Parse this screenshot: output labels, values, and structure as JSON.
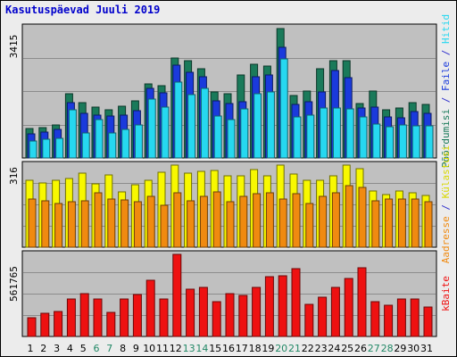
{
  "title": "Kasutuspäevad Juuli 2019",
  "colors": {
    "hits": "#1a7a5a",
    "files": "#1a3adc",
    "pages": "#26d8f0",
    "visits": "#f8f800",
    "sites": "#f08a10",
    "kbytes": "#ee1111",
    "weekday_label": "#000000",
    "weekend_label": "#228866",
    "panel_bg": "#c0c0c0"
  },
  "chart_data": [
    {
      "type": "bar",
      "panel": "top",
      "max_label": "3415",
      "ylim": [
        0,
        3415
      ],
      "grid": true,
      "categories": [
        "1",
        "2",
        "3",
        "4",
        "5",
        "6",
        "7",
        "8",
        "9",
        "10",
        "11",
        "12",
        "13",
        "14",
        "15",
        "16",
        "17",
        "18",
        "19",
        "20",
        "21",
        "22",
        "23",
        "24",
        "25",
        "26",
        "27",
        "28",
        "29",
        "30",
        "31"
      ],
      "series": [
        {
          "name": "Hitid",
          "values": [
            780,
            800,
            860,
            1690,
            1460,
            1340,
            1270,
            1350,
            1500,
            1940,
            1900,
            2630,
            2550,
            2330,
            1730,
            1680,
            2170,
            2450,
            2400,
            3390,
            1630,
            1750,
            2330,
            2540,
            2550,
            1420,
            1750,
            1260,
            1300,
            1440,
            1410
          ]
        },
        {
          "name": "Faile",
          "values": [
            620,
            670,
            740,
            1440,
            1180,
            1130,
            1100,
            1120,
            1230,
            1820,
            1710,
            2440,
            2240,
            2120,
            1500,
            1420,
            1470,
            2120,
            2180,
            2890,
            1410,
            1480,
            1730,
            2290,
            2100,
            1300,
            1340,
            1070,
            1060,
            1210,
            1170
          ]
        },
        {
          "name": "Põõrdumisi",
          "values": [
            440,
            490,
            520,
            1260,
            660,
            1000,
            650,
            750,
            870,
            1540,
            1340,
            1980,
            1660,
            1820,
            1100,
            1010,
            1280,
            1680,
            1740,
            2590,
            1080,
            1120,
            1310,
            1310,
            1290,
            1070,
            880,
            830,
            870,
            850,
            850
          ]
        }
      ]
    },
    {
      "type": "bar",
      "panel": "middle",
      "max_label": "316",
      "ylim": [
        0,
        316
      ],
      "grid": true,
      "categories": [
        "1",
        "2",
        "3",
        "4",
        "5",
        "6",
        "7",
        "8",
        "9",
        "10",
        "11",
        "12",
        "13",
        "14",
        "15",
        "16",
        "17",
        "18",
        "19",
        "20",
        "21",
        "22",
        "23",
        "24",
        "25",
        "26",
        "27",
        "28",
        "29",
        "30",
        "31"
      ],
      "series": [
        {
          "name": "Külastusi",
          "values": [
            256,
            248,
            256,
            266,
            285,
            244,
            279,
            212,
            242,
            256,
            288,
            316,
            285,
            292,
            296,
            276,
            275,
            298,
            276,
            316,
            282,
            259,
            258,
            275,
            316,
            302,
            215,
            202,
            216,
            210,
            200
          ]
        },
        {
          "name": "Aadresse",
          "values": [
            185,
            180,
            168,
            175,
            178,
            210,
            184,
            182,
            175,
            195,
            162,
            208,
            180,
            195,
            212,
            176,
            195,
            205,
            210,
            184,
            205,
            168,
            196,
            210,
            236,
            230,
            180,
            184,
            184,
            184,
            176
          ]
        }
      ]
    },
    {
      "type": "bar",
      "panel": "bottom",
      "max_label": "561765",
      "ylim": [
        0,
        561765
      ],
      "grid": true,
      "categories": [
        "1",
        "2",
        "3",
        "4",
        "5",
        "6",
        "7",
        "8",
        "9",
        "10",
        "11",
        "12",
        "13",
        "14",
        "15",
        "16",
        "17",
        "18",
        "19",
        "20",
        "21",
        "22",
        "23",
        "24",
        "25",
        "26",
        "27",
        "28",
        "29",
        "30",
        "31"
      ],
      "series": [
        {
          "name": "kBaite",
          "values": [
            126000,
            157000,
            171000,
            254000,
            296000,
            254000,
            165000,
            254000,
            286000,
            387000,
            254000,
            561765,
            325000,
            334000,
            240000,
            294000,
            283000,
            334000,
            408000,
            413000,
            462000,
            220000,
            266000,
            334000,
            398000,
            469000,
            240000,
            214000,
            254000,
            254000,
            203000
          ]
        }
      ]
    }
  ],
  "right_labels": {
    "top": [
      {
        "text": "Põõrdumisi",
        "color": "#1a7a5a"
      },
      {
        "text": " / ",
        "color": "#3030cc"
      },
      {
        "text": "Faile",
        "color": "#1a3adc"
      },
      {
        "text": " / ",
        "color": "#3030cc"
      },
      {
        "text": "Hitid",
        "color": "#26d8f0"
      }
    ],
    "middle": [
      {
        "text": "Aadresse",
        "color": "#f08a10"
      },
      {
        "text": " / ",
        "color": "#3030cc"
      },
      {
        "text": "Külastusi",
        "color": "#d8d800"
      }
    ],
    "bottom": [
      {
        "text": "kBaite",
        "color": "#ee1111"
      }
    ]
  },
  "weekend_days": [
    "6",
    "7",
    "13",
    "14",
    "20",
    "21",
    "27",
    "28"
  ]
}
